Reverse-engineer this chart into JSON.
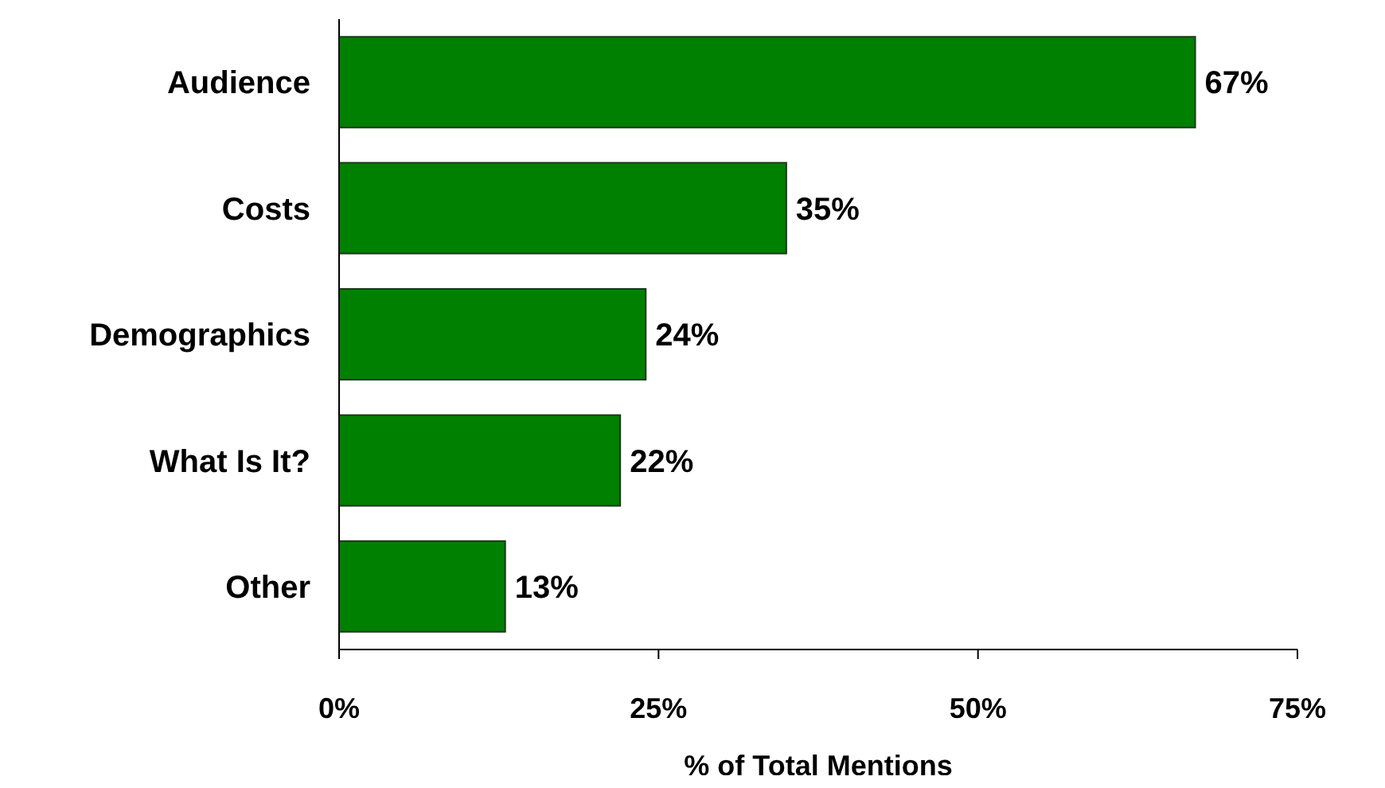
{
  "chart_data": {
    "type": "bar",
    "orientation": "horizontal",
    "xlabel": "% of Total Mentions",
    "categories": [
      "Audience",
      "Costs",
      "Demographics",
      "What Is It?",
      "Other"
    ],
    "values": [
      67,
      35,
      24,
      22,
      13
    ],
    "value_labels": [
      "67%",
      "35%",
      "24%",
      "22%",
      "13%"
    ],
    "color": "#008000",
    "xlim": [
      0,
      75
    ],
    "xticks": [
      {
        "value": 0,
        "label": "0%"
      },
      {
        "value": 25,
        "label": "25%"
      },
      {
        "value": 50,
        "label": "50%"
      },
      {
        "value": 75,
        "label": "75%"
      }
    ],
    "grid": false,
    "legend": false
  }
}
